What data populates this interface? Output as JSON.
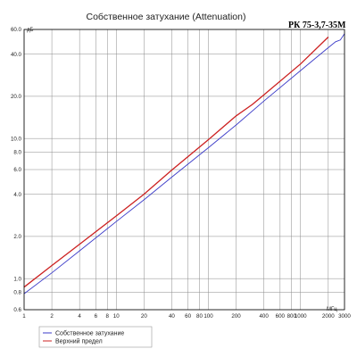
{
  "chart_data": {
    "type": "line",
    "title": "Собственное затухание (Attenuation)",
    "model": "РК 75-3,7-35М",
    "y_unit": "дБ",
    "x_unit": "МГц",
    "x_scale": "log",
    "y_scale": "log",
    "xlim": [
      1,
      3000
    ],
    "ylim": [
      0.6,
      60
    ],
    "grid": true,
    "x_ticks": [
      1,
      2,
      4,
      6,
      8,
      10,
      20,
      40,
      60,
      80,
      100,
      200,
      400,
      600,
      800,
      1000,
      2000,
      3000
    ],
    "x_tick_labels": [
      "1",
      "2",
      "4",
      "6",
      "8",
      "10",
      "20",
      "40",
      "60",
      "80",
      "100",
      "200",
      "400",
      "600",
      "800",
      "1000",
      "2000",
      "3000"
    ],
    "y_ticks": [
      0.6,
      0.8,
      1,
      2,
      4,
      6,
      8,
      10,
      20,
      40,
      60
    ],
    "y_tick_labels": [
      "0.6",
      "0.8",
      "1.0",
      "2.0",
      "4.0",
      "6.0",
      "8.0",
      "10.0",
      "20.0",
      "40.0",
      "60.0"
    ],
    "legend_position": "bottom-left",
    "series": [
      {
        "name": "Собственное затухание",
        "color": "#3b3bc8",
        "x": [
          1,
          2,
          4,
          10,
          20,
          40,
          100,
          200,
          400,
          1000,
          2000,
          2400,
          2700,
          3000
        ],
        "y": [
          0.78,
          1.1,
          1.58,
          2.55,
          3.65,
          5.3,
          8.6,
          12.5,
          18.5,
          30.5,
          44.5,
          49.0,
          50.5,
          56.0
        ]
      },
      {
        "name": "Верхний предел",
        "color": "#cc2020",
        "x": [
          1,
          2,
          4,
          10,
          20,
          40,
          100,
          200,
          300,
          400,
          1000,
          2000
        ],
        "y": [
          0.87,
          1.24,
          1.76,
          2.8,
          4.0,
          5.95,
          9.8,
          14.5,
          17.5,
          20.5,
          34.0,
          53.0
        ]
      }
    ]
  }
}
